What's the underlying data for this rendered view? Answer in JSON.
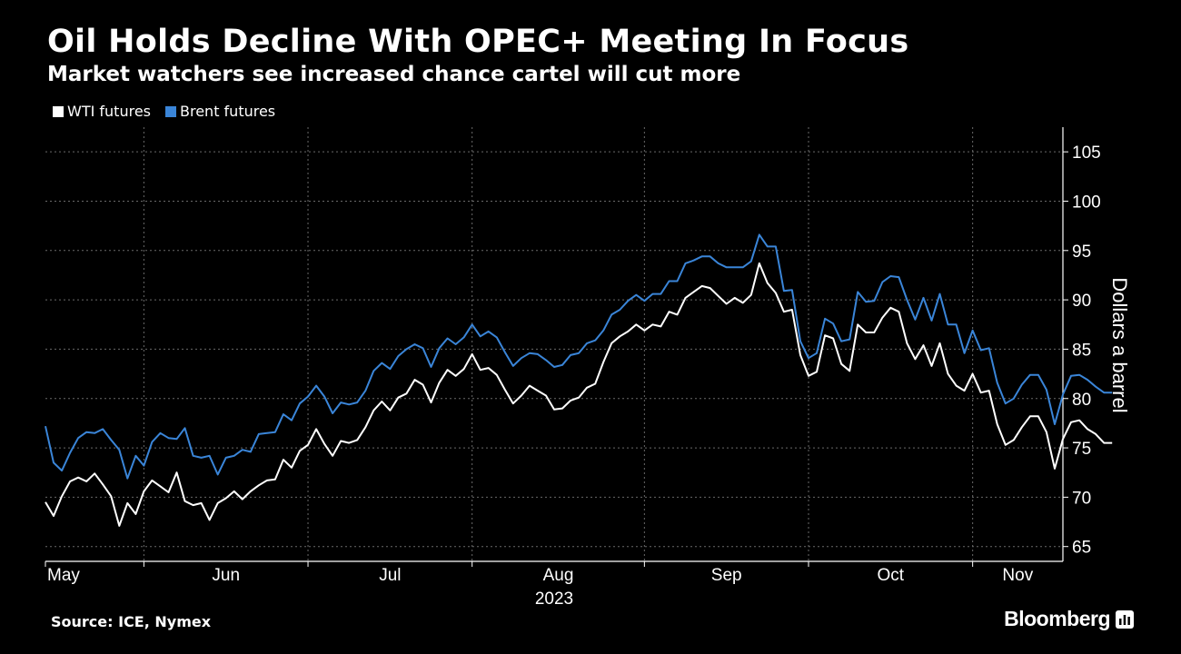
{
  "header": {
    "title": "Oil Holds Decline With OPEC+ Meeting In Focus",
    "subtitle": "Market watchers see increased chance cartel will cut more"
  },
  "footer": {
    "source": "Source: ICE, Nymex",
    "brand": "Bloomberg"
  },
  "colors": {
    "background": "#000000",
    "wti": "#ffffff",
    "brent": "#3a85d8",
    "grid": "#6a6a6a",
    "axis": "#ffffff"
  },
  "chart_data": {
    "type": "line",
    "title": "Oil Holds Decline With OPEC+ Meeting In Focus",
    "subtitle": "Market watchers see increased chance cartel will cut more",
    "xlabel": "2023",
    "ylabel": "Dollars a barrel",
    "ylim": [
      63.5,
      107.5
    ],
    "yticks": [
      65,
      70,
      75,
      80,
      85,
      90,
      95,
      100,
      105
    ],
    "x_range": [
      0,
      124
    ],
    "month_ticks": [
      {
        "label": "May",
        "x": 0
      },
      {
        "label": "Jun",
        "x": 12
      },
      {
        "label": "Jul",
        "x": 32
      },
      {
        "label": "Aug",
        "x": 52
      },
      {
        "label": "Sep",
        "x": 73
      },
      {
        "label": "Oct",
        "x": 93
      },
      {
        "label": "Nov",
        "x": 113
      }
    ],
    "year_label": "2023",
    "grid": true,
    "legend_position": "top-left",
    "series": [
      {
        "name": "WTI futures",
        "color": "#ffffff",
        "values": [
          69.5,
          68.1,
          70.1,
          71.6,
          72.0,
          71.6,
          72.4,
          71.3,
          70.1,
          67.1,
          69.4,
          68.3,
          70.6,
          71.7,
          71.1,
          70.5,
          72.5,
          69.6,
          69.2,
          69.4,
          67.7,
          69.4,
          69.9,
          70.6,
          69.8,
          70.6,
          71.2,
          71.7,
          71.8,
          73.8,
          73.0,
          74.7,
          75.3,
          76.9,
          75.4,
          74.2,
          75.7,
          75.5,
          75.8,
          77.1,
          78.8,
          79.7,
          78.8,
          80.1,
          80.5,
          81.9,
          81.4,
          79.6,
          81.6,
          82.9,
          82.3,
          83.0,
          84.5,
          82.9,
          83.1,
          82.4,
          80.9,
          79.5,
          80.3,
          81.3,
          80.8,
          80.3,
          78.9,
          79.0,
          79.8,
          80.1,
          81.1,
          81.5,
          83.7,
          85.6,
          86.3,
          86.8,
          87.5,
          86.9,
          87.5,
          87.3,
          88.8,
          88.5,
          90.2,
          90.8,
          91.4,
          91.2,
          90.4,
          89.6,
          90.2,
          89.7,
          90.5,
          93.7,
          91.7,
          90.7,
          88.8,
          89.0,
          84.4,
          82.3,
          82.7,
          86.4,
          86.1,
          83.5,
          82.8,
          87.5,
          86.7,
          86.7,
          88.2,
          89.2,
          88.8,
          85.6,
          84.0,
          85.4,
          83.3,
          85.6,
          82.5,
          81.3,
          80.8,
          82.5,
          80.6,
          80.8,
          77.4,
          75.3,
          75.8,
          77.1,
          78.2,
          78.2,
          76.6,
          72.9,
          75.9,
          77.6,
          77.8,
          76.9,
          76.4,
          75.5,
          75.5
        ]
      },
      {
        "name": "Brent futures",
        "color": "#3a85d8",
        "values": [
          77.2,
          73.5,
          72.7,
          74.5,
          76.0,
          76.6,
          76.5,
          76.9,
          75.8,
          74.8,
          71.9,
          74.2,
          73.2,
          75.6,
          76.5,
          76.0,
          75.9,
          77.0,
          74.2,
          74.0,
          74.2,
          72.3,
          74.0,
          74.2,
          74.8,
          74.6,
          76.4,
          76.5,
          76.6,
          78.4,
          77.8,
          79.5,
          80.2,
          81.3,
          80.2,
          78.5,
          79.6,
          79.4,
          79.6,
          80.8,
          82.8,
          83.6,
          83.0,
          84.3,
          85.0,
          85.5,
          85.1,
          83.2,
          85.1,
          86.1,
          85.5,
          86.2,
          87.5,
          86.3,
          86.8,
          86.2,
          84.7,
          83.3,
          84.1,
          84.6,
          84.5,
          83.9,
          83.2,
          83.4,
          84.4,
          84.6,
          85.6,
          85.9,
          86.9,
          88.5,
          89.0,
          89.9,
          90.5,
          89.9,
          90.6,
          90.6,
          91.9,
          91.9,
          93.7,
          94.0,
          94.4,
          94.4,
          93.7,
          93.3,
          93.3,
          93.3,
          93.9,
          96.6,
          95.4,
          95.4,
          90.9,
          91.0,
          85.8,
          84.1,
          84.6,
          88.1,
          87.6,
          85.8,
          86.0,
          90.8,
          89.8,
          89.9,
          91.8,
          92.4,
          92.3,
          90.0,
          88.0,
          90.2,
          87.9,
          90.6,
          87.5,
          87.5,
          84.6,
          86.9,
          84.9,
          85.1,
          81.6,
          79.5,
          80.0,
          81.4,
          82.4,
          82.4,
          80.9,
          77.4,
          80.4,
          82.3,
          82.4,
          81.9,
          81.2,
          80.6,
          80.6
        ]
      }
    ]
  }
}
